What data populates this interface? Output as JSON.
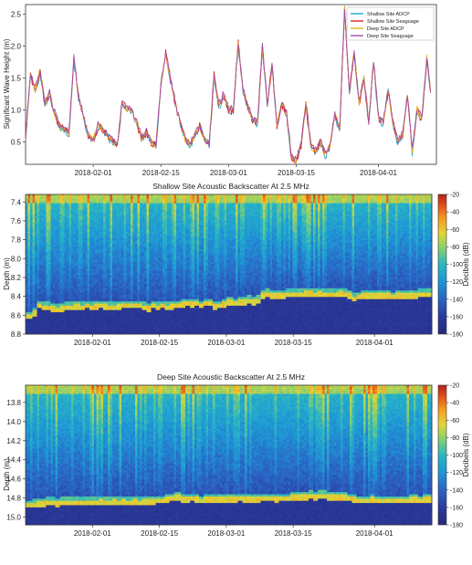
{
  "chart_data": [
    {
      "type": "line",
      "title": "",
      "xlabel": "",
      "ylabel": "Significant Wave Height (m)",
      "ylim": [
        0.15,
        2.65
      ],
      "xlim": [
        "2018-01-18",
        "2018-04-13"
      ],
      "yticks": [
        "0.5",
        "1.0",
        "1.5",
        "2.0",
        "2.5"
      ],
      "xticks": [
        "2018-02-01",
        "2018-02-15",
        "2018-03-01",
        "2018-03-15",
        "2018-04-01"
      ],
      "legend_placement": "top-right",
      "series": [
        {
          "name": "Shallow Site ADCP",
          "color": "#1fa6d6"
        },
        {
          "name": "Shallow Site Seaguage",
          "color": "#d9261c"
        },
        {
          "name": "Deep Site ADCP",
          "color": "#e8b21e"
        },
        {
          "name": "Deep Site Seaguage",
          "color": "#a54ca8"
        }
      ],
      "x_days": [
        0,
        1,
        2,
        3,
        4,
        5,
        6,
        7,
        8,
        9,
        10,
        11,
        12,
        13,
        14,
        15,
        16,
        17,
        18,
        19,
        20,
        21,
        22,
        23,
        24,
        25,
        26,
        27,
        28,
        29,
        30,
        31,
        32,
        33,
        34,
        35,
        36,
        37,
        38,
        39,
        40,
        41,
        42,
        43,
        44,
        45,
        46,
        47,
        48,
        49,
        50,
        51,
        52,
        53,
        54,
        55,
        56,
        57,
        58,
        59,
        60,
        61,
        62,
        63,
        64,
        65,
        66,
        67,
        68,
        69,
        70,
        71,
        72,
        73,
        74,
        75,
        76,
        77,
        78,
        79,
        80,
        81,
        82,
        83,
        84
      ],
      "x_dates": [
        "2018-01-18",
        "2018-01-19",
        "2018-01-20",
        "2018-01-21",
        "2018-01-22",
        "2018-01-23",
        "2018-01-24",
        "2018-01-25",
        "2018-01-26",
        "2018-01-27",
        "2018-01-28",
        "2018-01-29",
        "2018-01-30",
        "2018-01-31",
        "2018-02-01",
        "2018-02-02",
        "2018-02-03",
        "2018-02-04",
        "2018-02-05",
        "2018-02-06",
        "2018-02-07",
        "2018-02-08",
        "2018-02-09",
        "2018-02-10",
        "2018-02-11",
        "2018-02-12",
        "2018-02-13",
        "2018-02-14",
        "2018-02-15",
        "2018-02-16",
        "2018-02-17",
        "2018-02-18",
        "2018-02-19",
        "2018-02-20",
        "2018-02-21",
        "2018-02-22",
        "2018-02-23",
        "2018-02-24",
        "2018-02-25",
        "2018-02-26",
        "2018-02-27",
        "2018-02-28",
        "2018-03-01",
        "2018-03-02",
        "2018-03-03",
        "2018-03-04",
        "2018-03-05",
        "2018-03-06",
        "2018-03-07",
        "2018-03-08",
        "2018-03-09",
        "2018-03-10",
        "2018-03-11",
        "2018-03-12",
        "2018-03-13",
        "2018-03-14",
        "2018-03-15",
        "2018-03-16",
        "2018-03-17",
        "2018-03-18",
        "2018-03-19",
        "2018-03-20",
        "2018-03-21",
        "2018-03-22",
        "2018-03-23",
        "2018-03-24",
        "2018-03-25",
        "2018-03-26",
        "2018-03-27",
        "2018-03-28",
        "2018-03-29",
        "2018-03-30",
        "2018-03-31",
        "2018-04-01",
        "2018-04-02",
        "2018-04-03",
        "2018-04-04",
        "2018-04-05",
        "2018-04-06",
        "2018-04-07",
        "2018-04-08",
        "2018-04-09",
        "2018-04-10",
        "2018-04-11",
        "2018-04-12"
      ],
      "values": [
        0.55,
        1.55,
        1.3,
        1.6,
        1.1,
        1.25,
        0.95,
        0.75,
        0.7,
        0.65,
        1.8,
        1.2,
        0.9,
        0.6,
        0.5,
        0.75,
        0.7,
        0.6,
        0.5,
        0.45,
        1.15,
        1.0,
        1.0,
        0.8,
        0.55,
        0.65,
        0.5,
        0.45,
        1.4,
        1.9,
        1.45,
        1.1,
        0.8,
        0.55,
        0.45,
        0.6,
        0.75,
        0.55,
        0.45,
        1.55,
        1.05,
        1.25,
        1.0,
        1.0,
        2.05,
        1.3,
        1.05,
        0.85,
        0.8,
        2.0,
        1.1,
        1.7,
        0.75,
        1.1,
        0.95,
        0.25,
        0.2,
        0.45,
        1.1,
        0.45,
        0.35,
        0.5,
        0.3,
        0.45,
        0.95,
        0.7,
        2.6,
        1.3,
        1.9,
        1.1,
        1.5,
        0.8,
        1.75,
        0.9,
        0.8,
        1.3,
        0.8,
        0.5,
        0.6,
        1.25,
        0.35,
        1.0,
        0.85,
        1.8,
        1.15
      ]
    },
    {
      "type": "heatmap",
      "title": "Shallow Site Acoustic Backscatter At 2.5 MHz",
      "xlabel": "",
      "ylabel": "Depth (m)",
      "ylim": [
        8.8,
        7.32
      ],
      "yticks": [
        "7.4",
        "7.6",
        "7.8",
        "8.0",
        "8.2",
        "8.4",
        "8.6",
        "8.8"
      ],
      "xticks": [
        "2018-02-01",
        "2018-02-15",
        "2018-03-01",
        "2018-03-15",
        "2018-04-01"
      ],
      "colorbar_label": "Decibels (dB)",
      "colorbar_range": [
        -180,
        -20
      ],
      "colorbar_ticks": [
        "-20",
        "-40",
        "-60",
        "-80",
        "-100",
        "-120",
        "-140",
        "-160",
        "-180"
      ],
      "bottom_depth_m": [
        8.62,
        8.58,
        8.5,
        8.52,
        8.52,
        8.53,
        8.54,
        8.53,
        8.52,
        8.52,
        8.51,
        8.52,
        8.5,
        8.52,
        8.51,
        8.5,
        8.51,
        8.52,
        8.52,
        8.51,
        8.5,
        8.5,
        8.5,
        8.5,
        8.52,
        8.53,
        8.5,
        8.52,
        8.5,
        8.52,
        8.51,
        8.5,
        8.49,
        8.48,
        8.49,
        8.48,
        8.5,
        8.48,
        8.48,
        8.51,
        8.5,
        8.49,
        8.47,
        8.48,
        8.46,
        8.46,
        8.45,
        8.46,
        8.45,
        8.4,
        8.38,
        8.39,
        8.39,
        8.39,
        8.38,
        8.38,
        8.38,
        8.38,
        8.37,
        8.37,
        8.38,
        8.37,
        8.38,
        8.38,
        8.38,
        8.37,
        8.38,
        8.4,
        8.43,
        8.41,
        8.39,
        8.4,
        8.4,
        8.39,
        8.4,
        8.4,
        8.41,
        8.4,
        8.4,
        8.39,
        8.4,
        8.4,
        8.38,
        8.38,
        8.38
      ]
    },
    {
      "type": "heatmap",
      "title": "Deep Site Acoustic Backscatter At 2.5 MHz",
      "xlabel": "",
      "ylabel": "Depth (m)",
      "ylim": [
        15.08,
        13.62
      ],
      "yticks": [
        "13.8",
        "14.0",
        "14.2",
        "14.4",
        "14.6",
        "14.8",
        "15.0"
      ],
      "xticks": [
        "2018-02-01",
        "2018-02-15",
        "2018-03-01",
        "2018-03-15",
        "2018-04-01"
      ],
      "colorbar_label": "Decibels (dB)",
      "colorbar_range": [
        -180,
        -20
      ],
      "colorbar_ticks": [
        "-20",
        "-40",
        "-60",
        "-80",
        "-100",
        "-120",
        "-140",
        "-160",
        "-180"
      ],
      "bottom_depth_m": [
        14.88,
        14.87,
        14.86,
        14.86,
        14.85,
        14.85,
        14.86,
        14.85,
        14.85,
        14.85,
        14.85,
        14.85,
        14.85,
        14.85,
        14.85,
        14.84,
        14.85,
        14.85,
        14.84,
        14.85,
        14.84,
        14.85,
        14.84,
        14.85,
        14.84,
        14.84,
        14.84,
        14.83,
        14.83,
        14.82,
        14.81,
        14.8,
        14.82,
        14.82,
        14.81,
        14.82,
        14.83,
        14.82,
        14.82,
        14.82,
        14.82,
        14.82,
        14.82,
        14.82,
        14.81,
        14.82,
        14.82,
        14.82,
        14.82,
        14.81,
        14.81,
        14.81,
        14.82,
        14.81,
        14.81,
        14.8,
        14.8,
        14.79,
        14.79,
        14.78,
        14.79,
        14.78,
        14.78,
        14.79,
        14.79,
        14.79,
        14.8,
        14.81,
        14.82,
        14.83,
        14.83,
        14.83,
        14.82,
        14.83,
        14.83,
        14.83,
        14.83,
        14.83,
        14.83,
        14.83,
        14.82,
        14.82,
        14.83,
        14.82,
        14.82
      ]
    }
  ]
}
